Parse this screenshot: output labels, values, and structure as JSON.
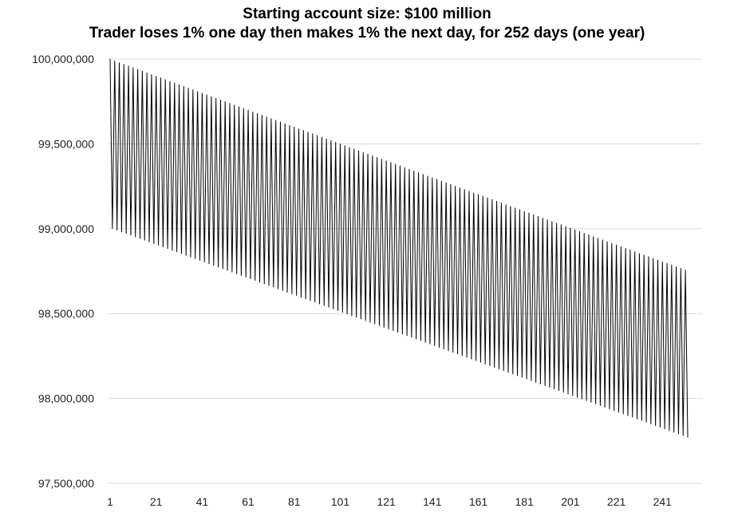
{
  "chart_data": {
    "type": "line",
    "title": "Starting account size: $100 million",
    "subtitle": "Trader loses 1% one day then makes 1% the next day, for 252 days (one year)",
    "xlabel": "",
    "ylabel": "",
    "start_value": 100000000,
    "daily_returns_pattern": [
      -0.01,
      0.01
    ],
    "n_days": 252,
    "x_ticks": [
      "1",
      "21",
      "41",
      "61",
      "81",
      "101",
      "121",
      "141",
      "161",
      "181",
      "201",
      "221",
      "241"
    ],
    "y_ticks": [
      "100,000,000",
      "99,500,000",
      "99,000,000",
      "98,500,000",
      "98,000,000",
      "97,500,000"
    ],
    "ylim": [
      97500000,
      100000000
    ],
    "xlim": [
      1,
      252
    ],
    "grid": "horizontal",
    "series": [
      {
        "color": "#000000",
        "rule": "day 1 = 100,000,000; each odd→even day ×0.99, each even→odd day ×1.01",
        "first_values": [
          100000000,
          99000000,
          99990000,
          98990100,
          99980001
        ],
        "last_value_approx": 97755000
      }
    ]
  }
}
